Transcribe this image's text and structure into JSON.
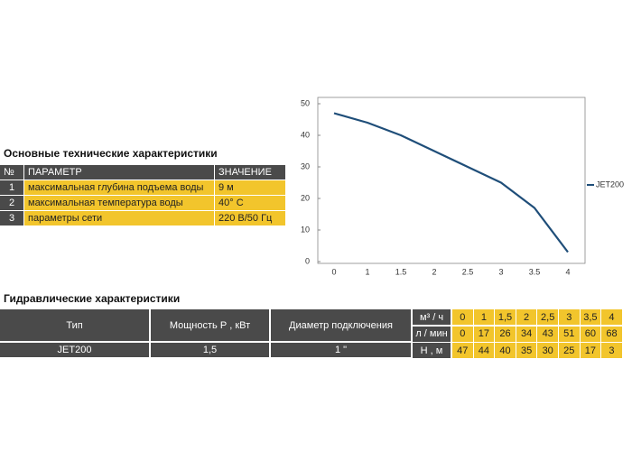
{
  "table1": {
    "title": "Основные технические характеристики",
    "header": [
      "№",
      "ПАРАМЕТР",
      "ЗНАЧЕНИЕ"
    ],
    "rows": [
      [
        "1",
        "максимальная глубина подъема воды",
        "9 м"
      ],
      [
        "2",
        "максимальная температура воды",
        "40° C"
      ],
      [
        "3",
        "параметры сети",
        "220 В/50 Гц"
      ]
    ]
  },
  "chart_data": {
    "type": "line",
    "categories": [
      "0",
      "1",
      "1.5",
      "2",
      "2.5",
      "3",
      "3.5",
      "4"
    ],
    "series": [
      {
        "name": "JET200",
        "color": "#1f4e79",
        "values": [
          47,
          44,
          40,
          35,
          30,
          25,
          17,
          3
        ]
      }
    ],
    "ylim": [
      0,
      50
    ],
    "yticks": [
      0,
      10,
      20,
      30,
      40,
      50
    ]
  },
  "table2": {
    "title": "Гидравлические характеристики",
    "header": [
      "Тип",
      "Мощность Р , кВт",
      "Диаметр подключения"
    ],
    "row": [
      "JET200",
      "1,5",
      "1 \""
    ],
    "params": [
      {
        "unit": "м³ / ч",
        "values": [
          "0",
          "1",
          "1,5",
          "2",
          "2,5",
          "3",
          "3,5",
          "4"
        ]
      },
      {
        "unit": "л / мин",
        "values": [
          "0",
          "17",
          "26",
          "34",
          "43",
          "51",
          "60",
          "68"
        ]
      },
      {
        "unit": "Н , м",
        "values": [
          "47",
          "44",
          "40",
          "35",
          "30",
          "25",
          "17",
          "3"
        ]
      }
    ]
  }
}
